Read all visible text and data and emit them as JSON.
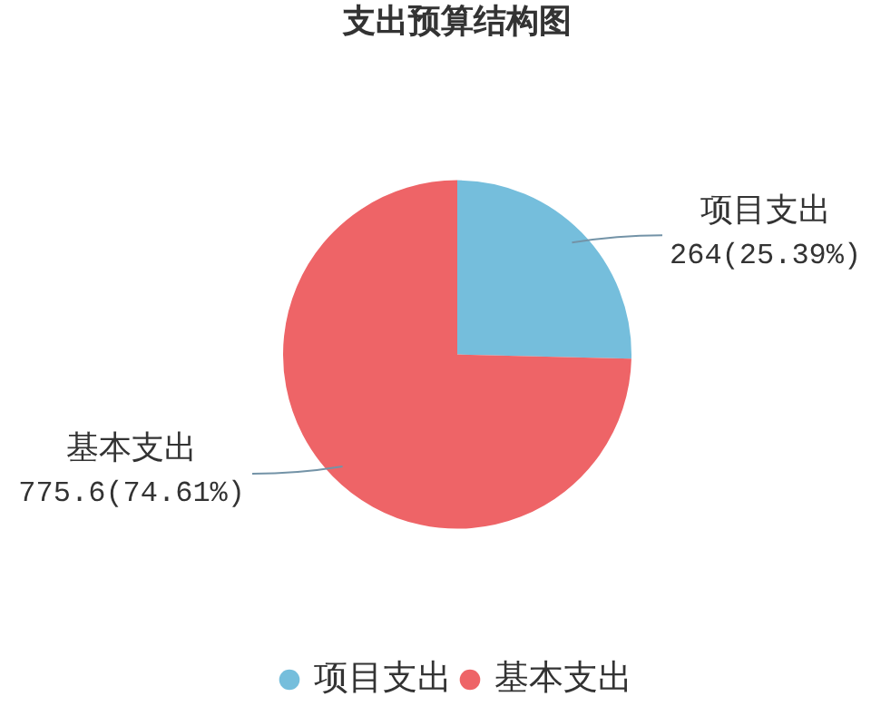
{
  "chart_data": {
    "type": "pie",
    "title": "支出预算结构图",
    "categories": [
      "项目支出",
      "基本支出"
    ],
    "values": [
      264,
      775.6
    ],
    "colors": [
      "#75bedc",
      "#ee6467"
    ],
    "value_labels": [
      "264(25.39%)",
      "775.6(74.61%)"
    ],
    "legend": "bottom"
  }
}
